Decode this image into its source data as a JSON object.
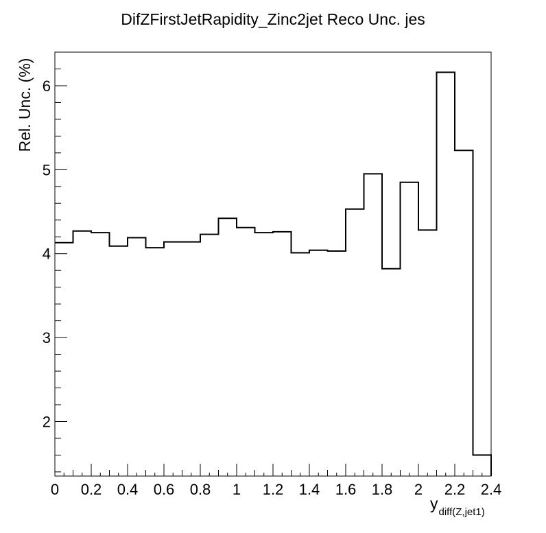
{
  "chart_data": {
    "type": "histogram-step",
    "title": "DifZFirstJetRapidity_Zinc2jet Reco Unc. jes",
    "ylabel": "Rel. Unc. (%)",
    "xlabel_main": "y",
    "xlabel_sub": "diff(Z,jet1)",
    "xlim": [
      0,
      2.4
    ],
    "ylim": [
      1.35,
      6.4
    ],
    "x_ticks": [
      0,
      0.2,
      0.4,
      0.6,
      0.8,
      1,
      1.2,
      1.4,
      1.6,
      1.8,
      2,
      2.2,
      2.4
    ],
    "x_tick_labels": [
      "0",
      "0.2",
      "0.4",
      "0.6",
      "0.8",
      "1",
      "1.2",
      "1.4",
      "1.6",
      "1.8",
      "2",
      "2.2",
      "2.4"
    ],
    "y_ticks": [
      2,
      3,
      4,
      5,
      6
    ],
    "y_tick_labels": [
      "2",
      "3",
      "4",
      "5",
      "6"
    ],
    "bin_edges": [
      0,
      0.1,
      0.2,
      0.3,
      0.4,
      0.5,
      0.6,
      0.7,
      0.8,
      0.9,
      1.0,
      1.1,
      1.2,
      1.3,
      1.4,
      1.5,
      1.6,
      1.7,
      1.8,
      1.9,
      2.0,
      2.1,
      2.2,
      2.3,
      2.4
    ],
    "values": [
      4.13,
      4.27,
      4.25,
      4.09,
      4.19,
      4.07,
      4.14,
      4.14,
      4.23,
      4.42,
      4.31,
      4.25,
      4.26,
      4.01,
      4.04,
      4.03,
      4.53,
      4.95,
      3.82,
      4.85,
      4.28,
      6.16,
      5.23,
      1.6
    ],
    "line_color": "#000000",
    "grid": false,
    "legend": "none"
  }
}
